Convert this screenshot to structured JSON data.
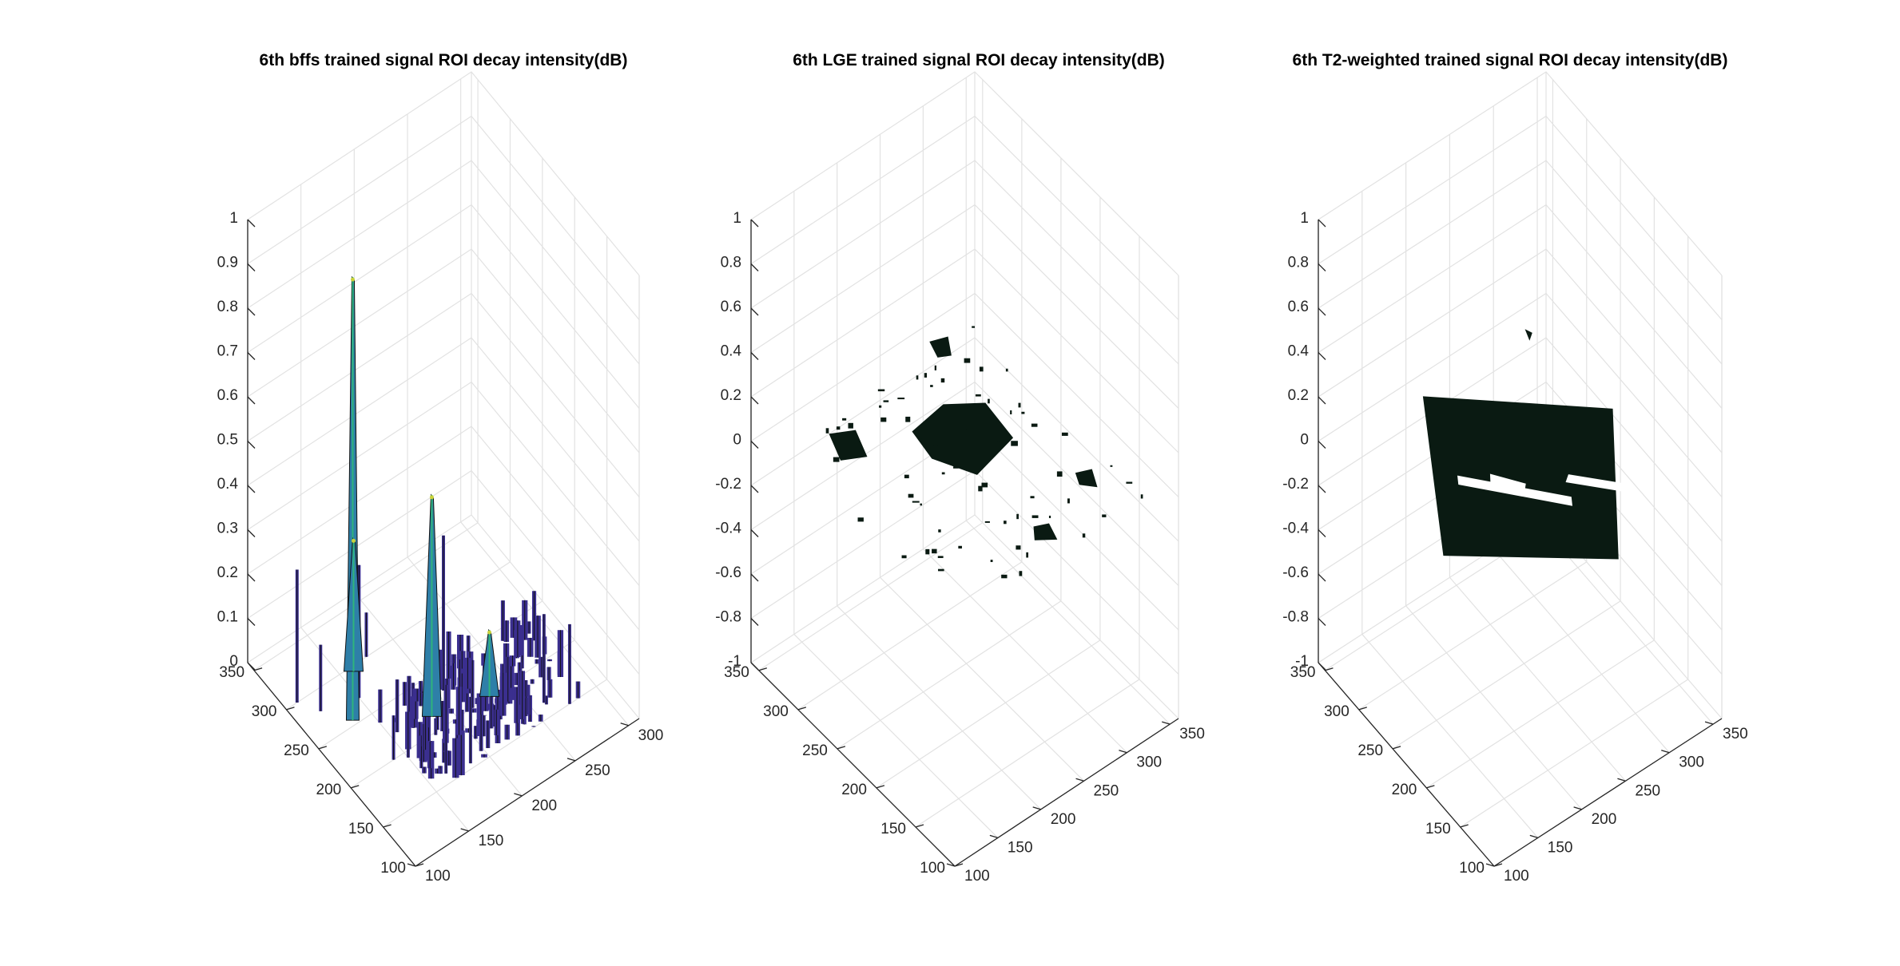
{
  "chart_data": [
    {
      "type": "surface",
      "title": "6th bffs trained signal ROI decay intensity(dB)",
      "xlabel": "",
      "ylabel": "",
      "zlabel": "",
      "x_ticks": [
        100,
        150,
        200,
        250,
        300
      ],
      "y_ticks": [
        100,
        150,
        200,
        250,
        300,
        350
      ],
      "z_ticks": [
        0,
        0.1,
        0.2,
        0.3,
        0.4,
        0.5,
        0.6,
        0.7,
        0.8,
        0.9,
        1
      ],
      "xlim": [
        100,
        310
      ],
      "ylim": [
        100,
        360
      ],
      "zlim": [
        0,
        1
      ],
      "grid": true,
      "colormap": [
        "#3b2f8f",
        "#2e7fa8",
        "#2fb47c",
        "#c9d23a"
      ],
      "peaks": [
        {
          "x": 135,
          "y": 255,
          "z": 1.0
        },
        {
          "x": 185,
          "y": 215,
          "z": 0.5
        },
        {
          "x": 160,
          "y": 295,
          "z": 0.3
        },
        {
          "x": 230,
          "y": 200,
          "z": 0.15
        }
      ]
    },
    {
      "type": "surface",
      "title": "6th LGE trained signal ROI decay intensity(dB)",
      "xlabel": "",
      "ylabel": "",
      "zlabel": "",
      "x_ticks": [
        100,
        150,
        200,
        250,
        300,
        350
      ],
      "y_ticks": [
        100,
        150,
        200,
        250,
        300,
        350
      ],
      "z_ticks": [
        -1,
        -0.8,
        -0.6,
        -0.4,
        -0.2,
        0,
        0.2,
        0.4,
        0.6,
        0.8,
        1
      ],
      "xlim": [
        100,
        360
      ],
      "ylim": [
        100,
        360
      ],
      "zlim": [
        -1,
        1
      ],
      "grid": true,
      "surface_color": "#0a1a12"
    },
    {
      "type": "surface",
      "title": "6th T2-weighted trained signal ROI decay intensity(dB)",
      "xlabel": "",
      "ylabel": "",
      "zlabel": "",
      "x_ticks": [
        100,
        150,
        200,
        250,
        300,
        350
      ],
      "y_ticks": [
        100,
        150,
        200,
        250,
        300,
        350
      ],
      "z_ticks": [
        -1,
        -0.8,
        -0.6,
        -0.4,
        -0.2,
        0,
        0.2,
        0.4,
        0.6,
        0.8,
        1
      ],
      "xlim": [
        100,
        360
      ],
      "ylim": [
        100,
        360
      ],
      "zlim": [
        -1,
        1
      ],
      "grid": true,
      "surface_color": "#0a1a12"
    }
  ]
}
